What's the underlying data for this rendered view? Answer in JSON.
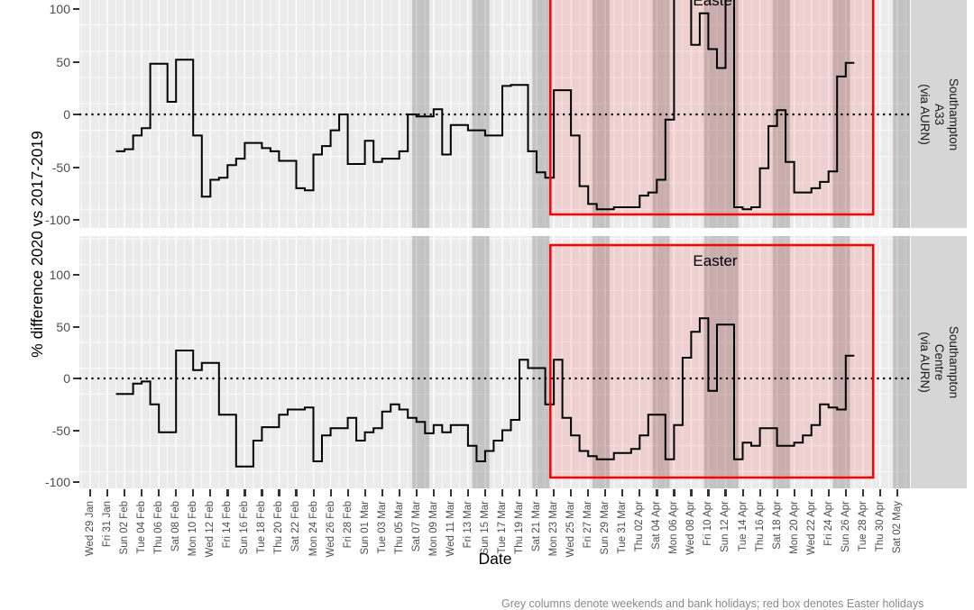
{
  "figure": {
    "y_axis_title": "% difference 2020 vs 2017-2019",
    "x_axis_title": "Date",
    "caption_bottom_cutoff": "Grey columns denote weekends and bank holidays; red box denotes Easter holidays",
    "colors": {
      "panel_background": "#EBEBEB",
      "gridline": "#FFFFFF",
      "weekend_band": "rgba(90,90,90,0.27)",
      "easter_box_fill": "rgba(255,0,0,0.11)",
      "easter_box_border": "#FF0000",
      "step_line": "#000000",
      "strip_background": "#D6D6D6",
      "axis_text": "#4D4D4D"
    },
    "facets": [
      {
        "label": "Southampton A33\n(via AURN)"
      },
      {
        "label": "Southampton Centre\n(via AURN)"
      }
    ]
  },
  "chart_data": {
    "type": "line",
    "subtype": "step",
    "x_start": "Sat 01 Feb 2020",
    "x_step_days": 1,
    "x_axis_range": [
      "Wed 29 Jan",
      "Sat 02 May"
    ],
    "ylabel": "% difference 2020 vs 2017-2019",
    "xlabel": "Date",
    "ylim": [
      -108,
      137
    ],
    "y_ticks": [
      100,
      50,
      0,
      -50,
      -100
    ],
    "grid": "on",
    "zero_reference_line": {
      "style": "dotted",
      "y": 0
    },
    "x_tick_labels": [
      "Wed 29 Jan",
      "Fri 31 Jan",
      "Sun 02 Feb",
      "Tue 04 Feb",
      "Thu 06 Feb",
      "Sat 08 Feb",
      "Mon 10 Feb",
      "Wed 12 Feb",
      "Fri 14 Feb",
      "Sun 16 Feb",
      "Tue 18 Feb",
      "Thu 20 Feb",
      "Sat 22 Feb",
      "Mon 24 Feb",
      "Wed 26 Feb",
      "Fri 28 Feb",
      "Sun 01 Mar",
      "Tue 03 Mar",
      "Thu 05 Mar",
      "Sat 07 Mar",
      "Mon 09 Mar",
      "Wed 11 Mar",
      "Fri 13 Mar",
      "Sun 15 Mar",
      "Tue 17 Mar",
      "Thu 19 Mar",
      "Sat 21 Mar",
      "Mon 23 Mar",
      "Wed 25 Mar",
      "Fri 27 Mar",
      "Sun 29 Mar",
      "Tue 31 Mar",
      "Thu 02 Apr",
      "Sat 04 Apr",
      "Mon 06 Apr",
      "Wed 08 Apr",
      "Fri 10 Apr",
      "Sun 12 Apr",
      "Tue 14 Apr",
      "Thu 16 Apr",
      "Sat 18 Apr",
      "Mon 20 Apr",
      "Wed 22 Apr",
      "Fri 24 Apr",
      "Sun 26 Apr",
      "Tue 28 Apr",
      "Thu 30 Apr",
      "Sat 02 May"
    ],
    "series": [
      {
        "name": "Southampton A33 (via AURN)",
        "values": [
          -35,
          -33,
          -20,
          -13,
          48,
          48,
          12,
          52,
          52,
          -20,
          -78,
          -62,
          -60,
          -48,
          -42,
          -27,
          -27,
          -32,
          -35,
          -44,
          -44,
          -70,
          -72,
          -38,
          -30,
          -15,
          0,
          -47,
          -47,
          -25,
          -45,
          -42,
          -42,
          -35,
          0,
          -2,
          -2,
          5,
          -38,
          -10,
          -10,
          -15,
          -15,
          -20,
          -20,
          27,
          28,
          28,
          -35,
          -55,
          -60,
          23,
          23,
          -20,
          -68,
          -85,
          -90,
          -90,
          -88,
          -88,
          -88,
          -77,
          -74,
          -62,
          -5,
          130,
          130,
          66,
          96,
          62,
          44,
          130,
          -88,
          -90,
          -88,
          -51,
          -11,
          4,
          -45,
          -74,
          -74,
          -70,
          -64,
          -54,
          36,
          49
        ]
      },
      {
        "name": "Southampton Centre (via AURN)",
        "values": [
          -15,
          -15,
          -5,
          -3,
          -25,
          -52,
          -52,
          27,
          27,
          8,
          15,
          15,
          -35,
          -35,
          -85,
          -85,
          -60,
          -47,
          -47,
          -35,
          -30,
          -30,
          -28,
          -80,
          -55,
          -48,
          -48,
          -38,
          -60,
          -52,
          -48,
          -32,
          -25,
          -30,
          -38,
          -42,
          -53,
          -45,
          -52,
          -45,
          -45,
          -65,
          -80,
          -70,
          -60,
          -50,
          -40,
          18,
          10,
          10,
          -25,
          18,
          -38,
          -55,
          -70,
          -75,
          -78,
          -78,
          -72,
          -72,
          -68,
          -55,
          -35,
          -35,
          -78,
          -45,
          20,
          45,
          58,
          -12,
          52,
          52,
          -78,
          -62,
          -65,
          -48,
          -48,
          -65,
          -65,
          -62,
          -55,
          -45,
          -25,
          -28,
          -30,
          22
        ]
      }
    ],
    "annotations": {
      "easter_box": {
        "label": "Easter",
        "start": "Mon 23 Mar",
        "end": "Tue 28 Apr",
        "start_day_offset_from_29jan": 53.6,
        "end_day_offset_from_29jan": 91.2,
        "y_min": -95,
        "y_max": 129
      },
      "weekend_bands_day_offsets_from_29jan": [
        [
          38,
          39
        ],
        [
          45,
          46
        ],
        [
          52,
          53
        ],
        [
          59,
          60
        ],
        [
          66,
          67
        ],
        [
          72,
          75
        ],
        [
          80,
          81
        ],
        [
          87,
          88
        ],
        [
          94,
          95
        ]
      ],
      "weekend_bands_dates": [
        "Sat 07–Sun 08 Mar",
        "Sat 14–Sun 15 Mar",
        "Sat 21–Sun 22 Mar",
        "Sat 28–Sun 29 Mar",
        "Sat 04–Sun 05 Apr",
        "Fri 10–Mon 13 Apr (Easter weekend)",
        "Sat 18–Sun 19 Apr",
        "Sat 25–Sun 26 Apr",
        "Sat 02 May"
      ]
    }
  }
}
